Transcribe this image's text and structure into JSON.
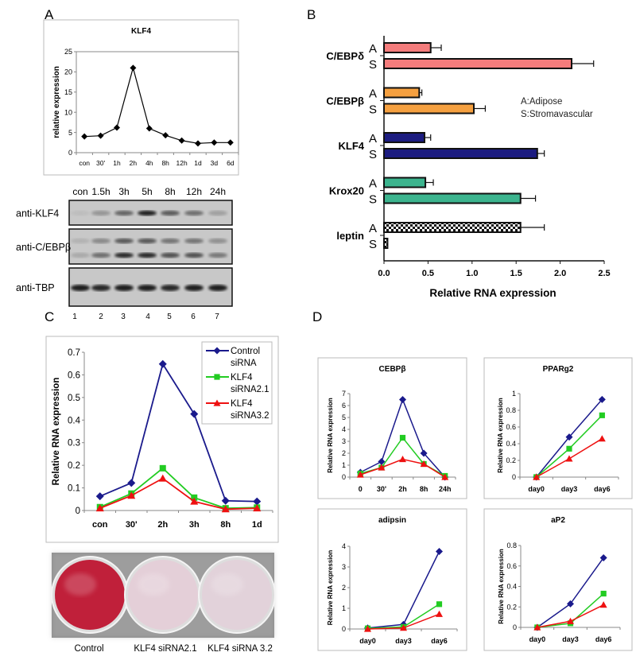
{
  "panel_labels": {
    "a": "A",
    "b": "B",
    "c": "C",
    "d": "D"
  },
  "chart_data": [
    {
      "id": "A",
      "type": "line",
      "title": "KLF4",
      "xlabel": "",
      "ylabel": "relative expression",
      "ylim": [
        0,
        25
      ],
      "yticks": [
        "0",
        "5",
        "10",
        "15",
        "20",
        "25"
      ],
      "categories": [
        "con",
        "30'",
        "1h",
        "2h",
        "4h",
        "8h",
        "12h",
        "1d",
        "3d",
        "6d"
      ],
      "series": [
        {
          "name": "KLF4",
          "color": "#000000",
          "marker": "diamond",
          "values": [
            4.0,
            4.2,
            6.2,
            21.0,
            6.0,
            4.3,
            3.0,
            2.3,
            2.5,
            2.5
          ]
        }
      ]
    },
    {
      "id": "B",
      "type": "bar",
      "orientation": "horizontal",
      "xlabel": "Relative RNA expression",
      "xlim": [
        0,
        2.5
      ],
      "xticks": [
        "0.0",
        "0.5",
        "1.0",
        "1.5",
        "2.0",
        "2.5"
      ],
      "legend": [
        "A:Adipose",
        "S:Stromavascular"
      ],
      "groups": [
        {
          "name": "C/EBPδ",
          "color": "#f47c7c",
          "A": 0.53,
          "A_err": 0.12,
          "S": 2.13,
          "S_err": 0.25
        },
        {
          "name": "C/EBPβ",
          "color": "#f5a040",
          "A": 0.4,
          "A_err": 0.03,
          "S": 1.02,
          "S_err": 0.13
        },
        {
          "name": "KLF4",
          "color": "#1c1c80",
          "A": 0.46,
          "A_err": 0.07,
          "S": 1.74,
          "S_err": 0.08
        },
        {
          "name": "Krox20",
          "color": "#3cb48e",
          "A": 0.47,
          "A_err": 0.09,
          "S": 1.55,
          "S_err": 0.17
        },
        {
          "name": "leptin",
          "color": "checker",
          "A": 1.55,
          "A_err": 0.27,
          "S": 0.04,
          "S_err": 0
        }
      ],
      "bar_letters": [
        "A",
        "S"
      ]
    },
    {
      "id": "C",
      "type": "line",
      "ylabel": "Relative RNA expression",
      "ylim": [
        0,
        0.7
      ],
      "yticks": [
        "0",
        "0.1",
        "0.2",
        "0.3",
        "0.4",
        "0.5",
        "0.6",
        "0.7"
      ],
      "categories": [
        "con",
        "30'",
        "2h",
        "3h",
        "8h",
        "1d"
      ],
      "legend_placement": "top-right",
      "series": [
        {
          "name": "Control siRNA",
          "name_lines": [
            "Control",
            "siRNA"
          ],
          "color": "#1a1a8c",
          "marker": "diamond",
          "values": [
            0.063,
            0.122,
            0.648,
            0.427,
            0.043,
            0.04
          ]
        },
        {
          "name": "KLF4 siRNA2.1",
          "name_lines": [
            "KLF4",
            "siRNA2.1"
          ],
          "color": "#22cc22",
          "marker": "square",
          "values": [
            0.015,
            0.075,
            0.187,
            0.057,
            0.01,
            0.013
          ]
        },
        {
          "name": "KLF4 siRNA3.2",
          "name_lines": [
            "KLF4",
            "siRNA3.2"
          ],
          "color": "#ee1111",
          "marker": "triangle",
          "values": [
            0.01,
            0.066,
            0.142,
            0.04,
            0.006,
            0.01
          ]
        }
      ]
    },
    {
      "id": "D1",
      "type": "line",
      "title": "CEBPβ",
      "ylabel": "Relative RNA expression",
      "ylim": [
        0,
        7
      ],
      "yticks": [
        "0",
        "1",
        "2",
        "3",
        "4",
        "5",
        "6",
        "7"
      ],
      "categories": [
        "0",
        "30'",
        "2h",
        "8h",
        "24h"
      ],
      "series": [
        {
          "name": "Control siRNA",
          "color": "#1a1a8c",
          "marker": "diamond",
          "values": [
            0.4,
            1.3,
            6.5,
            2.0,
            0.0
          ]
        },
        {
          "name": "KLF4 siRNA2.1",
          "color": "#22cc22",
          "marker": "square",
          "values": [
            0.3,
            0.8,
            3.3,
            1.1,
            0.1
          ]
        },
        {
          "name": "KLF4 siRNA3.2",
          "color": "#ee1111",
          "marker": "triangle",
          "values": [
            0.2,
            0.8,
            1.5,
            1.1,
            0.0
          ]
        }
      ]
    },
    {
      "id": "D2",
      "type": "line",
      "title": "PPARg2",
      "ylabel": "Relative RNA expression",
      "ylim": [
        0,
        1
      ],
      "yticks": [
        "0",
        "0.2",
        "0.4",
        "0.6",
        "0.8",
        "1"
      ],
      "categories": [
        "day0",
        "day3",
        "day6"
      ],
      "series": [
        {
          "name": "Control siRNA",
          "color": "#1a1a8c",
          "marker": "diamond",
          "values": [
            0.0,
            0.48,
            0.93
          ]
        },
        {
          "name": "KLF4 siRNA2.1",
          "color": "#22cc22",
          "marker": "square",
          "values": [
            0.0,
            0.34,
            0.74
          ]
        },
        {
          "name": "KLF4 siRNA3.2",
          "color": "#ee1111",
          "marker": "triangle",
          "values": [
            0.0,
            0.22,
            0.46
          ]
        }
      ]
    },
    {
      "id": "D3",
      "type": "line",
      "title": "adipsin",
      "ylabel": "Relative RNA expression",
      "ylim": [
        0,
        4
      ],
      "yticks": [
        "0",
        "1",
        "2",
        "3",
        "4"
      ],
      "categories": [
        "day0",
        "day3",
        "day6"
      ],
      "series": [
        {
          "name": "Control siRNA",
          "color": "#1a1a8c",
          "marker": "diamond",
          "values": [
            0.05,
            0.22,
            3.75
          ]
        },
        {
          "name": "KLF4 siRNA2.1",
          "color": "#22cc22",
          "marker": "square",
          "values": [
            0.03,
            0.1,
            1.2
          ]
        },
        {
          "name": "KLF4 siRNA3.2",
          "color": "#ee1111",
          "marker": "triangle",
          "values": [
            0.0,
            0.05,
            0.72
          ]
        }
      ]
    },
    {
      "id": "D4",
      "type": "line",
      "title": "aP2",
      "ylabel": "Relative RNA expression",
      "ylim": [
        0,
        0.8
      ],
      "yticks": [
        "0",
        "0.2",
        "0.4",
        "0.6",
        "0.8"
      ],
      "categories": [
        "day0",
        "day3",
        "day6"
      ],
      "series": [
        {
          "name": "Control siRNA",
          "color": "#1a1a8c",
          "marker": "diamond",
          "values": [
            0.0,
            0.23,
            0.68
          ]
        },
        {
          "name": "KLF4 siRNA2.1",
          "color": "#22cc22",
          "marker": "square",
          "values": [
            0.0,
            0.04,
            0.33
          ]
        },
        {
          "name": "KLF4 siRNA3.2",
          "color": "#ee1111",
          "marker": "triangle",
          "values": [
            0.0,
            0.06,
            0.22
          ]
        }
      ]
    }
  ],
  "blot": {
    "timepoints": [
      "con",
      "1.5h",
      "3h",
      "5h",
      "8h",
      "12h",
      "24h"
    ],
    "lanes": [
      "1",
      "2",
      "3",
      "4",
      "5",
      "6",
      "7"
    ],
    "rows": [
      {
        "label": "anti-KLF4",
        "intensity": [
          0.05,
          0.25,
          0.5,
          0.85,
          0.55,
          0.45,
          0.2
        ]
      },
      {
        "label": "anti-C/EBPβ",
        "intensity": [
          0.15,
          0.45,
          0.8,
          0.8,
          0.6,
          0.6,
          0.4
        ]
      },
      {
        "label": "anti-TBP",
        "intensity": [
          0.85,
          0.8,
          0.85,
          0.85,
          0.8,
          0.85,
          0.85
        ]
      }
    ]
  },
  "dishes": {
    "labels": [
      "Control",
      "KLF4 siRNA2.1",
      "KLF4 siRNA 3.2"
    ],
    "colors": [
      "#c0203a",
      "#e4cfd8",
      "#e2d2da"
    ]
  }
}
